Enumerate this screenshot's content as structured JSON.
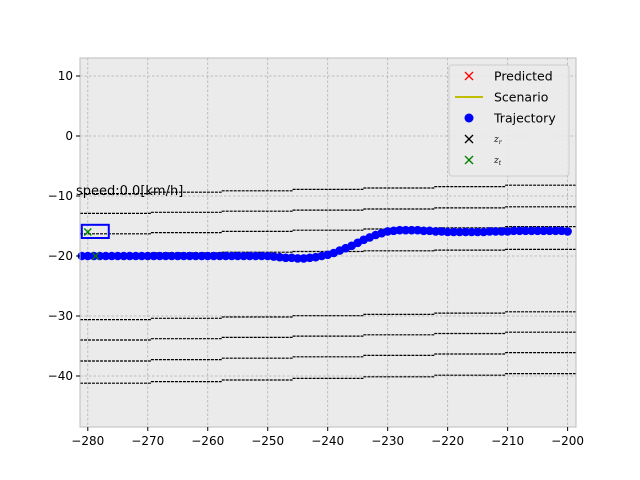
{
  "chart_data": {
    "type": "scatter",
    "title": "",
    "xlabel": "",
    "ylabel": "",
    "xlim": [
      -281.3,
      -198.6
    ],
    "ylim": [
      -48.5,
      13.0
    ],
    "xticks": [
      -280,
      -270,
      -260,
      -250,
      -240,
      -230,
      -220,
      -210,
      -200
    ],
    "yticks": [
      -40,
      -30,
      -20,
      -10,
      0,
      10
    ],
    "xtick_labels": [
      "−280",
      "−270",
      "−260",
      "−250",
      "−240",
      "−230",
      "−220",
      "−210",
      "−200"
    ],
    "ytick_labels": [
      "−40",
      "−30",
      "−20",
      "−10",
      "0",
      "10"
    ],
    "grid": true,
    "background": "#ebebeb",
    "legend_position": "top-right",
    "annotation": "speed:0.0[km/h]",
    "series": [
      {
        "name": "Predicted",
        "kind": "marker-x",
        "color": "#ff0000",
        "points": []
      },
      {
        "name": "Scenario",
        "kind": "line",
        "color": "#bfbf00",
        "points": []
      },
      {
        "name": "Trajectory",
        "kind": "marker-dot",
        "color": "#0000ff",
        "x": [
          -281,
          -280,
          -279,
          -278,
          -277,
          -276,
          -275,
          -274,
          -273,
          -272,
          -271,
          -270,
          -269,
          -268,
          -267,
          -266,
          -265,
          -264,
          -263,
          -262,
          -261,
          -260,
          -259,
          -258,
          -257,
          -256,
          -255,
          -254,
          -253,
          -252,
          -251,
          -250,
          -249,
          -248,
          -247,
          -246,
          -245,
          -244,
          -243,
          -242,
          -241,
          -240,
          -239,
          -238,
          -237,
          -236,
          -235,
          -234,
          -233,
          -232,
          -231,
          -230,
          -229,
          -228,
          -227,
          -226,
          -225,
          -224,
          -223,
          -222,
          -221,
          -220,
          -219,
          -218,
          -217,
          -216,
          -215,
          -214,
          -213,
          -212,
          -211,
          -210,
          -209,
          -208,
          -207,
          -206,
          -205,
          -204,
          -203,
          -202,
          -201,
          -200
        ],
        "y": [
          -20,
          -20,
          -20,
          -20,
          -20,
          -20,
          -20,
          -20,
          -20,
          -20,
          -20,
          -20,
          -20,
          -20,
          -20,
          -20,
          -20,
          -20,
          -20,
          -20,
          -20,
          -20,
          -20,
          -20,
          -20,
          -20,
          -20,
          -20,
          -20,
          -20,
          -20,
          -20,
          -20.1,
          -20.2,
          -20.3,
          -20.3,
          -20.4,
          -20.4,
          -20.3,
          -20.2,
          -20.0,
          -19.8,
          -19.5,
          -19.1,
          -18.7,
          -18.3,
          -17.8,
          -17.3,
          -16.9,
          -16.5,
          -16.2,
          -15.9,
          -15.8,
          -15.7,
          -15.7,
          -15.7,
          -15.7,
          -15.8,
          -15.8,
          -15.9,
          -15.9,
          -16.0,
          -16.0,
          -16.0,
          -16.0,
          -16.0,
          -16.0,
          -16.0,
          -15.9,
          -15.9,
          -15.9,
          -15.9,
          -15.8,
          -15.8,
          -15.8,
          -15.8,
          -15.8,
          -15.8,
          -15.8,
          -15.8,
          -15.8,
          -15.9
        ]
      },
      {
        "name": "z_r",
        "legend_base": "z",
        "legend_sub": "r",
        "kind": "marker-x",
        "color": "#000000",
        "points": []
      },
      {
        "name": "z_t",
        "legend_base": "z",
        "legend_sub": "t",
        "kind": "marker-x",
        "color": "#008000",
        "x": [
          -280,
          -278.7
        ],
        "y": [
          -16.0,
          -20.0
        ]
      }
    ],
    "lanes": [
      {
        "y_left": -9.6,
        "y_right": -8.2
      },
      {
        "y_left": -12.9,
        "y_right": -11.8
      },
      {
        "y_left": -16.3,
        "y_right": -15.1
      },
      {
        "y_left": -19.6,
        "y_right": -18.9
      },
      {
        "y_left": -30.6,
        "y_right": -29.3
      },
      {
        "y_left": -34.0,
        "y_right": -32.7
      },
      {
        "y_left": -37.5,
        "y_right": -36.1
      },
      {
        "y_left": -41.2,
        "y_right": -39.6
      }
    ],
    "vehicle_box": {
      "x": [
        -281.0,
        -276.5
      ],
      "y": [
        -17.0,
        -14.8
      ],
      "color": "#0000ff"
    }
  }
}
